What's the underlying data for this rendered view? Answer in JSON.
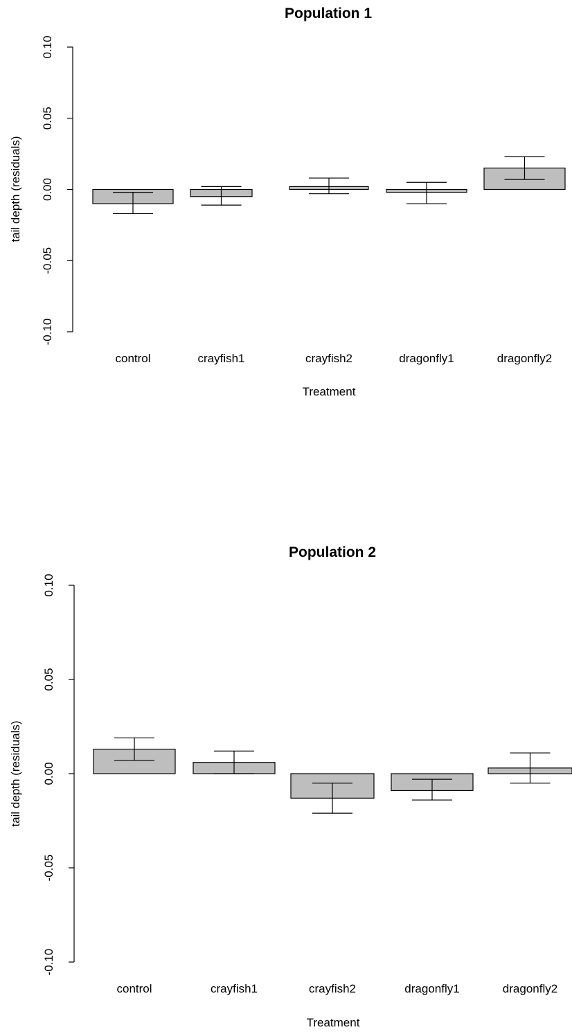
{
  "chart_data": [
    {
      "type": "bar",
      "title": "Population 1",
      "xlabel": "Treatment",
      "ylabel": "tail depth (residuals)",
      "ylim": [
        -0.1,
        0.1
      ],
      "yticks": [
        "-0.10",
        "-0.05",
        "0.00",
        "0.05",
        "0.10"
      ],
      "categories": [
        "control",
        "crayfish1",
        "crayfish2",
        "dragonfly1",
        "dragonfly2"
      ],
      "values": [
        -0.01,
        -0.005,
        0.002,
        -0.002,
        0.015
      ],
      "error_lower": [
        -0.017,
        -0.011,
        -0.003,
        -0.01,
        0.007
      ],
      "error_upper": [
        -0.002,
        0.002,
        0.008,
        0.005,
        0.023
      ],
      "grid": false,
      "colors": {
        "bar_fill": "#bebebe",
        "stroke": "#000000"
      }
    },
    {
      "type": "bar",
      "title": "Population 2",
      "xlabel": "Treatment",
      "ylabel": "tail depth (residuals)",
      "ylim": [
        -0.1,
        0.1
      ],
      "yticks": [
        "-0.10",
        "-0.05",
        "0.00",
        "0.05",
        "0.10"
      ],
      "categories": [
        "control",
        "crayfish1",
        "crayfish2",
        "dragonfly1",
        "dragonfly2"
      ],
      "values": [
        0.013,
        0.006,
        -0.013,
        -0.009,
        0.003
      ],
      "error_lower": [
        0.007,
        0.0,
        -0.021,
        -0.014,
        -0.005
      ],
      "error_upper": [
        0.019,
        0.012,
        -0.005,
        -0.003,
        0.011
      ],
      "grid": false,
      "colors": {
        "bar_fill": "#bebebe",
        "stroke": "#000000"
      }
    }
  ]
}
